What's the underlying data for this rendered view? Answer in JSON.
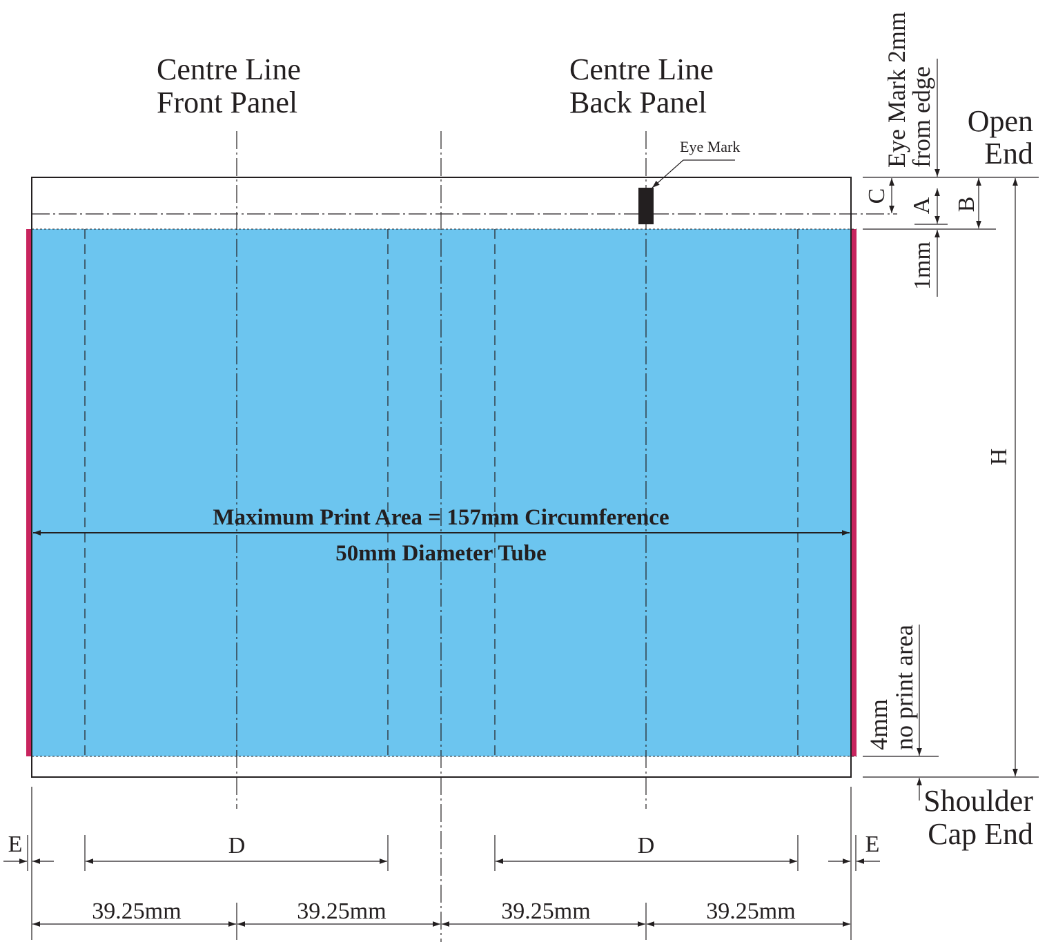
{
  "labels": {
    "centre_front_line1": "Centre Line",
    "centre_front_line2": "Front Panel",
    "centre_back_line1": "Centre Line",
    "centre_back_line2": "Back Panel",
    "eye_mark": "Eye Mark",
    "eye_mark_note_line1": "Eye Mark 2mm",
    "eye_mark_note_line2": "from edge",
    "open_end_line1": "Open",
    "open_end_line2": "End",
    "dim_c": "C",
    "dim_a": "A",
    "dim_b": "B",
    "dim_1mm": "1mm",
    "dim_h": "H",
    "no_print_line1": "4mm",
    "no_print_line2": "no print area",
    "shoulder_line1": "Shoulder",
    "shoulder_line2": "Cap End",
    "max_print_area": "Maximum Print Area = 157mm Circumference",
    "tube_diameter": "50mm Diameter Tube",
    "dim_e_left": "E",
    "dim_e_right": "E",
    "dim_d_left": "D",
    "dim_d_right": "D",
    "seg1": "39.25mm",
    "seg2": "39.25mm",
    "seg3": "39.25mm",
    "seg4": "39.25mm"
  },
  "colors": {
    "print_area": "#6cc5ef",
    "edge_band": "#c8245e",
    "line": "#231f20",
    "eye_mark": "#231f20"
  }
}
